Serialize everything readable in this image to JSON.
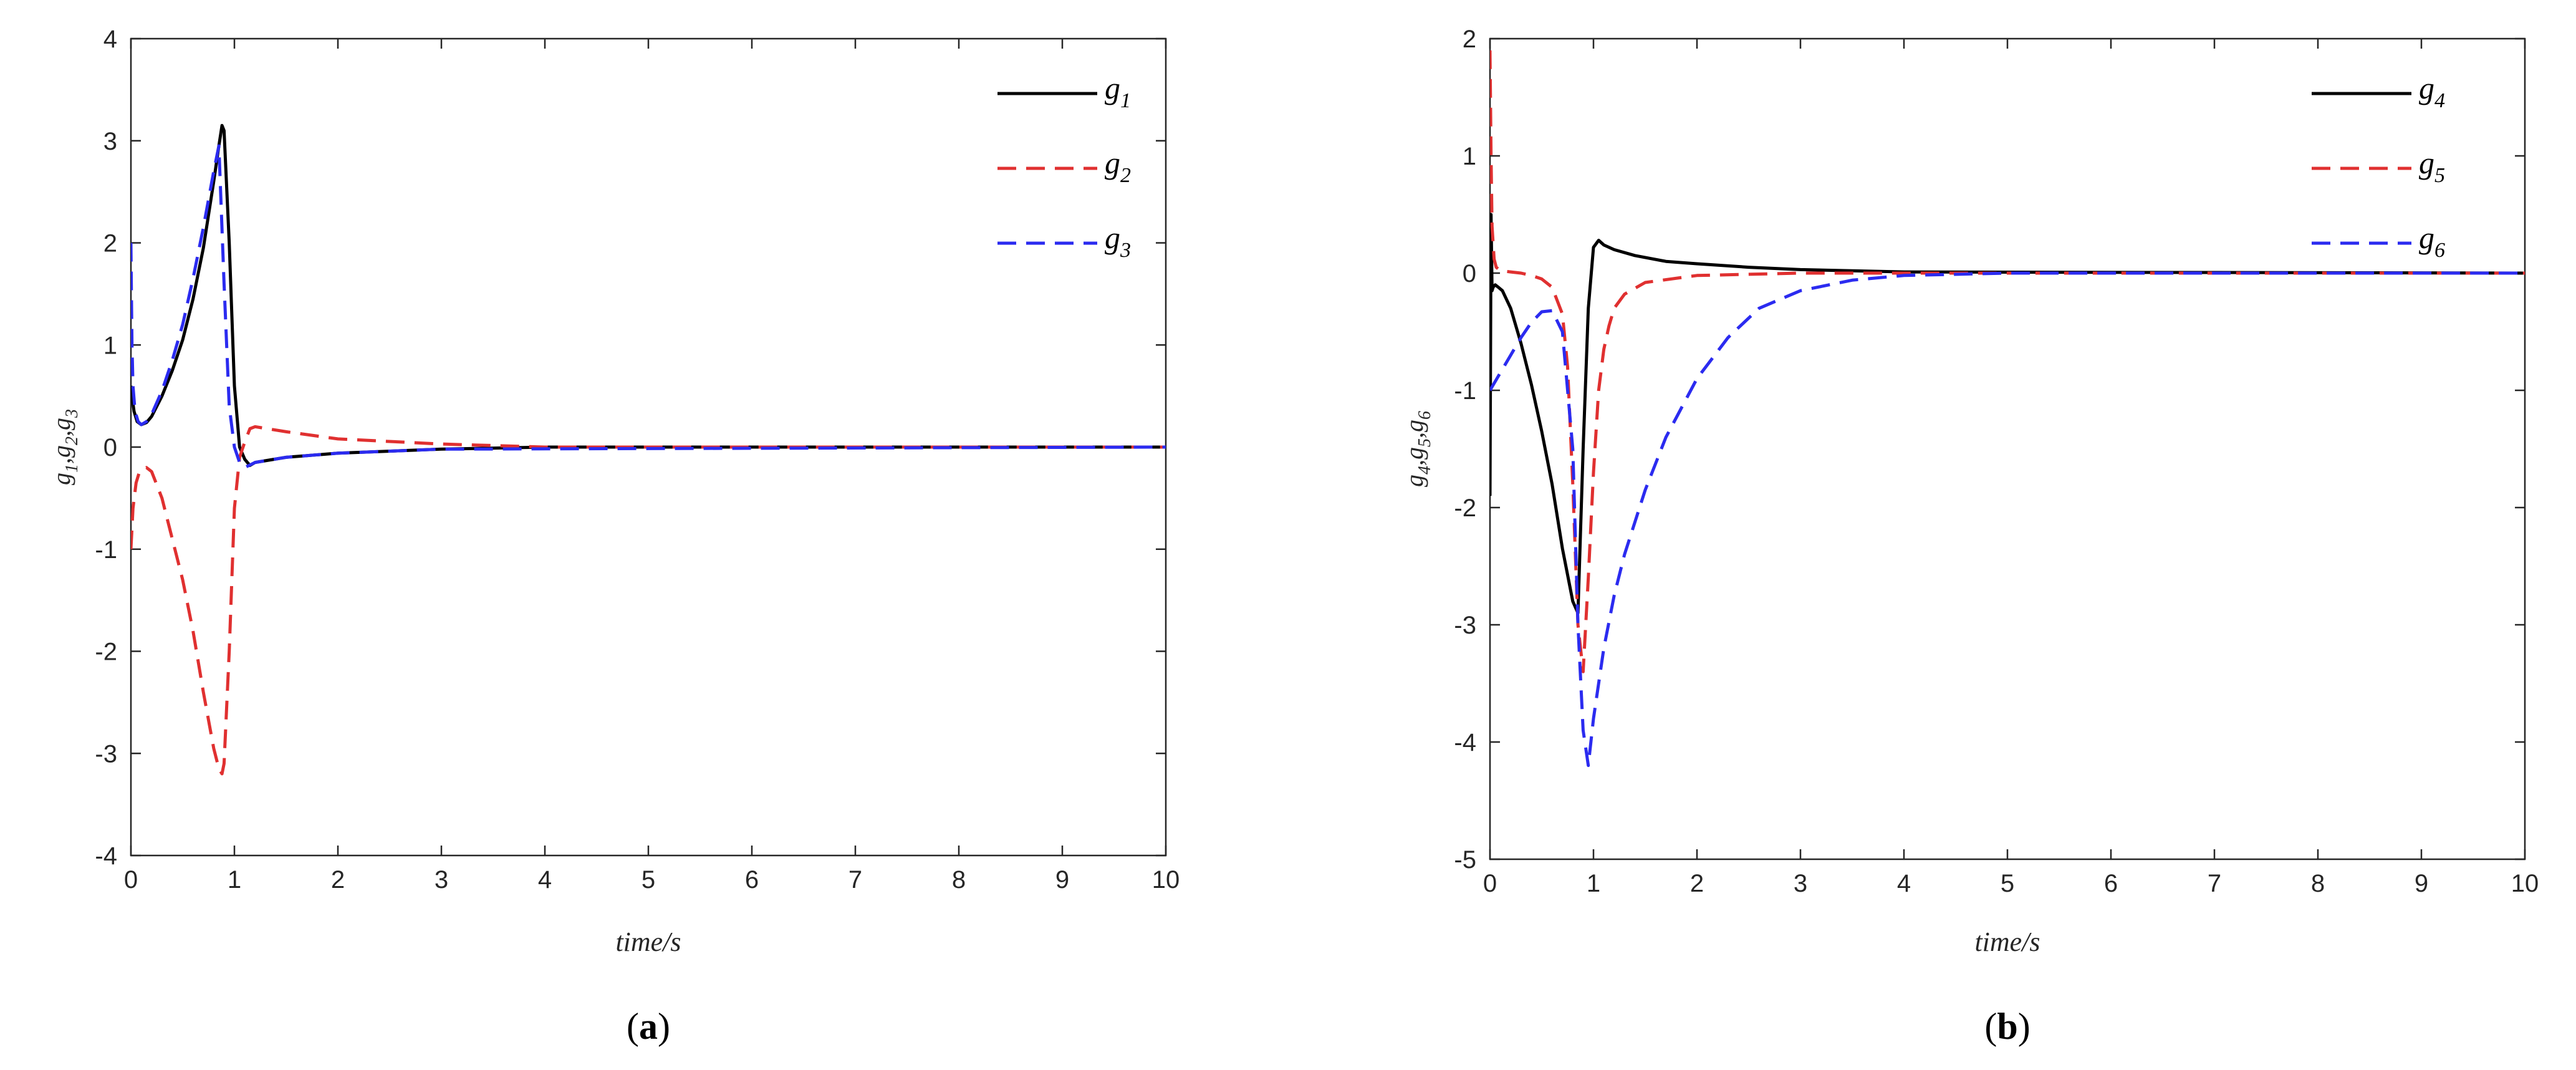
{
  "chart_data": [
    {
      "type": "line",
      "panel": "a",
      "caption_open": "(",
      "caption_letter": "a",
      "caption_close": ")",
      "xlabel": "time/s",
      "ylabel": "g1,g2,g3",
      "xlim": [
        0,
        10
      ],
      "ylim": [
        -4,
        4
      ],
      "xticks": [
        "0",
        "1",
        "2",
        "3",
        "4",
        "5",
        "6",
        "7",
        "8",
        "9",
        "10"
      ],
      "yticks": [
        "-4",
        "-3",
        "-2",
        "-1",
        "0",
        "1",
        "2",
        "3",
        "4"
      ],
      "legend_position": "top-right",
      "grid": false,
      "series": [
        {
          "name": "g1",
          "color": "#000000",
          "style": "solid",
          "x": [
            0,
            0.01,
            0.03,
            0.06,
            0.1,
            0.15,
            0.2,
            0.3,
            0.4,
            0.5,
            0.6,
            0.7,
            0.8,
            0.85,
            0.88,
            0.9,
            0.95,
            1.0,
            1.05,
            1.1,
            1.15,
            1.2,
            1.5,
            2,
            3,
            4,
            10
          ],
          "y": [
            0.6,
            0.5,
            0.35,
            0.25,
            0.22,
            0.24,
            0.3,
            0.5,
            0.75,
            1.05,
            1.45,
            1.95,
            2.6,
            2.95,
            3.15,
            3.1,
            2.0,
            0.6,
            0.0,
            -0.12,
            -0.18,
            -0.15,
            -0.1,
            -0.06,
            -0.02,
            0,
            0
          ]
        },
        {
          "name": "g2",
          "color": "#e03030",
          "style": "dashed",
          "x": [
            0,
            0.02,
            0.05,
            0.08,
            0.1,
            0.15,
            0.2,
            0.3,
            0.4,
            0.5,
            0.6,
            0.7,
            0.8,
            0.85,
            0.88,
            0.9,
            0.95,
            1.0,
            1.05,
            1.1,
            1.15,
            1.2,
            1.5,
            2,
            3,
            4,
            10
          ],
          "y": [
            -1.0,
            -0.6,
            -0.35,
            -0.25,
            -0.22,
            -0.2,
            -0.24,
            -0.5,
            -0.9,
            -1.3,
            -1.8,
            -2.4,
            -2.95,
            -3.15,
            -3.2,
            -3.1,
            -2.0,
            -0.6,
            -0.1,
            0.05,
            0.18,
            0.2,
            0.15,
            0.08,
            0.03,
            0,
            0
          ]
        },
        {
          "name": "g3",
          "color": "#2b2bf0",
          "style": "dashed",
          "x": [
            0,
            0.005,
            0.01,
            0.02,
            0.04,
            0.07,
            0.1,
            0.15,
            0.2,
            0.3,
            0.4,
            0.5,
            0.6,
            0.7,
            0.8,
            0.85,
            0.9,
            0.95,
            1.0,
            1.05,
            1.1,
            1.2,
            1.5,
            2,
            3,
            10
          ],
          "y": [
            2.0,
            1.5,
            1.0,
            0.6,
            0.35,
            0.25,
            0.22,
            0.25,
            0.32,
            0.55,
            0.85,
            1.2,
            1.65,
            2.15,
            2.7,
            2.95,
            1.6,
            0.4,
            0.0,
            -0.15,
            -0.2,
            -0.15,
            -0.1,
            -0.06,
            -0.02,
            0
          ]
        }
      ]
    },
    {
      "type": "line",
      "panel": "b",
      "caption_open": "(",
      "caption_letter": "b",
      "caption_close": ")",
      "xlabel": "time/s",
      "ylabel": "g4,g5,g6",
      "xlim": [
        0,
        10
      ],
      "ylim": [
        -5,
        2
      ],
      "xticks": [
        "0",
        "1",
        "2",
        "3",
        "4",
        "5",
        "6",
        "7",
        "8",
        "9",
        "10"
      ],
      "yticks": [
        "-5",
        "-4",
        "-3",
        "-2",
        "-1",
        "0",
        "1",
        "2"
      ],
      "legend_position": "top-right",
      "grid": false,
      "series": [
        {
          "name": "g4",
          "color": "#000000",
          "style": "solid",
          "x": [
            0,
            0.01,
            0.02,
            0.03,
            0.05,
            0.08,
            0.12,
            0.2,
            0.3,
            0.4,
            0.5,
            0.6,
            0.7,
            0.8,
            0.85,
            0.9,
            0.95,
            1.0,
            1.05,
            1.1,
            1.2,
            1.4,
            1.7,
            2,
            2.5,
            3,
            4,
            10
          ],
          "y": [
            -1.9,
            0.5,
            -0.15,
            -0.12,
            -0.1,
            -0.12,
            -0.15,
            -0.3,
            -0.6,
            -0.95,
            -1.35,
            -1.8,
            -2.35,
            -2.8,
            -2.9,
            -1.5,
            -0.3,
            0.22,
            0.28,
            0.24,
            0.2,
            0.15,
            0.1,
            0.08,
            0.05,
            0.03,
            0.01,
            0
          ]
        },
        {
          "name": "g5",
          "color": "#e03030",
          "style": "dashed",
          "x": [
            0,
            0.01,
            0.02,
            0.04,
            0.06,
            0.1,
            0.2,
            0.3,
            0.4,
            0.5,
            0.6,
            0.7,
            0.75,
            0.8,
            0.85,
            0.9,
            0.95,
            1.0,
            1.05,
            1.1,
            1.15,
            1.2,
            1.3,
            1.5,
            2,
            2.5,
            3,
            10
          ],
          "y": [
            1.9,
            1.0,
            0.4,
            0.12,
            0.05,
            0.02,
            0.01,
            0.0,
            -0.02,
            -0.05,
            -0.12,
            -0.35,
            -0.8,
            -1.8,
            -3.0,
            -3.4,
            -2.6,
            -1.7,
            -1.0,
            -0.65,
            -0.45,
            -0.3,
            -0.18,
            -0.08,
            -0.02,
            -0.01,
            0,
            0
          ]
        },
        {
          "name": "g6",
          "color": "#2b2bf0",
          "style": "dashed",
          "x": [
            0,
            0.1,
            0.2,
            0.3,
            0.4,
            0.5,
            0.6,
            0.7,
            0.8,
            0.85,
            0.9,
            0.95,
            1.0,
            1.1,
            1.2,
            1.3,
            1.5,
            1.7,
            2,
            2.3,
            2.6,
            3,
            3.5,
            4,
            5,
            10
          ],
          "y": [
            -1.0,
            -0.85,
            -0.7,
            -0.55,
            -0.42,
            -0.33,
            -0.32,
            -0.5,
            -1.5,
            -3.0,
            -3.9,
            -4.2,
            -3.8,
            -3.2,
            -2.75,
            -2.4,
            -1.85,
            -1.4,
            -0.9,
            -0.55,
            -0.3,
            -0.15,
            -0.06,
            -0.02,
            0,
            0
          ]
        }
      ]
    }
  ]
}
